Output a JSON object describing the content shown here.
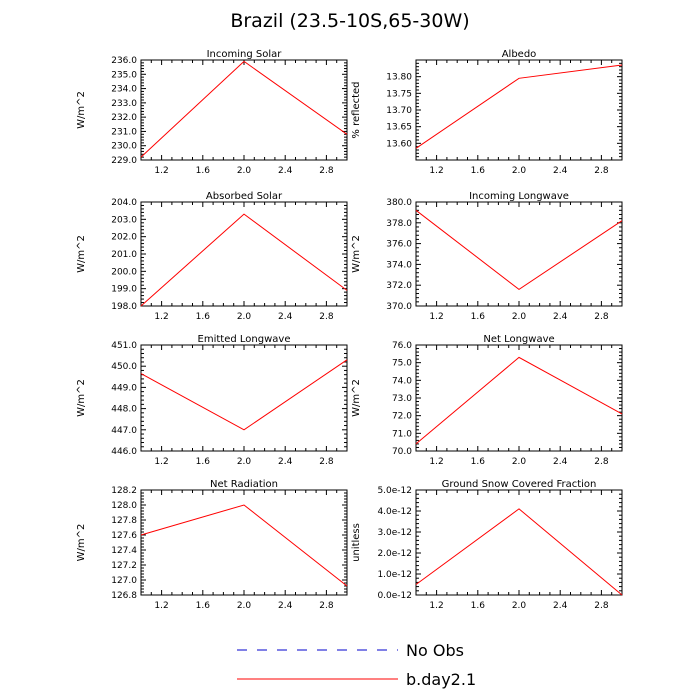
{
  "page_title": "Brazil (23.5-10S,65-30W)",
  "colors": {
    "series": "#ff0000",
    "no_obs": "#0000cc",
    "axis": "#000000",
    "background": "#ffffff"
  },
  "legend": {
    "placement": "bottom-center",
    "entries": [
      {
        "label": "No Obs",
        "color": "#0000cc",
        "style": "dashed"
      },
      {
        "label": "b.day2.1",
        "color": "#ff0000",
        "style": "solid"
      }
    ]
  },
  "chart_data": [
    {
      "type": "line",
      "title": "Incoming Solar",
      "ylabel": "W/m^2",
      "xlim": [
        1,
        3
      ],
      "ylim": [
        229,
        236
      ],
      "xticks": [
        "1.2",
        "1.6",
        "2.0",
        "2.4",
        "2.8"
      ],
      "yticks": [
        "229.0",
        "230.0",
        "231.0",
        "232.0",
        "233.0",
        "234.0",
        "235.0",
        "236.0"
      ],
      "series": [
        {
          "x": [
            1,
            2,
            3
          ],
          "y": [
            229.2,
            235.9,
            230.8
          ]
        }
      ]
    },
    {
      "type": "line",
      "title": "Albedo",
      "ylabel": "% reflected",
      "xlim": [
        1,
        3
      ],
      "ylim": [
        13.55,
        13.85
      ],
      "xticks": [
        "1.2",
        "1.6",
        "2.0",
        "2.4",
        "2.8"
      ],
      "yticks": [
        "13.60",
        "13.65",
        "13.70",
        "13.75",
        "13.80"
      ],
      "series": [
        {
          "x": [
            1,
            2,
            3
          ],
          "y": [
            13.585,
            13.795,
            13.835
          ]
        }
      ]
    },
    {
      "type": "line",
      "title": "Absorbed Solar",
      "ylabel": "W/m^2",
      "xlim": [
        1,
        3
      ],
      "ylim": [
        198,
        204
      ],
      "xticks": [
        "1.2",
        "1.6",
        "2.0",
        "2.4",
        "2.8"
      ],
      "yticks": [
        "198.0",
        "199.0",
        "200.0",
        "201.0",
        "202.0",
        "203.0",
        "204.0"
      ],
      "series": [
        {
          "x": [
            1,
            2,
            3
          ],
          "y": [
            198.0,
            203.3,
            198.9
          ]
        }
      ]
    },
    {
      "type": "line",
      "title": "Incoming Longwave",
      "ylabel": "W/m^2",
      "xlim": [
        1,
        3
      ],
      "ylim": [
        370,
        380
      ],
      "xticks": [
        "1.2",
        "1.6",
        "2.0",
        "2.4",
        "2.8"
      ],
      "yticks": [
        "370.0",
        "372.0",
        "374.0",
        "376.0",
        "378.0",
        "380.0"
      ],
      "series": [
        {
          "x": [
            1,
            2,
            3
          ],
          "y": [
            379.2,
            371.6,
            378.2
          ]
        }
      ]
    },
    {
      "type": "line",
      "title": "Emitted Longwave",
      "ylabel": "W/m^2",
      "xlim": [
        1,
        3
      ],
      "ylim": [
        446,
        451
      ],
      "xticks": [
        "1.2",
        "1.6",
        "2.0",
        "2.4",
        "2.8"
      ],
      "yticks": [
        "446.0",
        "447.0",
        "448.0",
        "449.0",
        "450.0",
        "451.0"
      ],
      "series": [
        {
          "x": [
            1,
            2,
            3
          ],
          "y": [
            449.65,
            447.0,
            450.3
          ]
        }
      ]
    },
    {
      "type": "line",
      "title": "Net Longwave",
      "ylabel": "W/m^2",
      "xlim": [
        1,
        3
      ],
      "ylim": [
        70,
        76
      ],
      "xticks": [
        "1.2",
        "1.6",
        "2.0",
        "2.4",
        "2.8"
      ],
      "yticks": [
        "70.0",
        "71.0",
        "72.0",
        "73.0",
        "74.0",
        "75.0",
        "76.0"
      ],
      "series": [
        {
          "x": [
            1,
            2,
            3
          ],
          "y": [
            70.4,
            75.3,
            72.1
          ]
        }
      ]
    },
    {
      "type": "line",
      "title": "Net Radiation",
      "ylabel": "W/m^2",
      "xlim": [
        1,
        3
      ],
      "ylim": [
        126.8,
        128.2
      ],
      "xticks": [
        "1.2",
        "1.6",
        "2.0",
        "2.4",
        "2.8"
      ],
      "yticks": [
        "126.8",
        "127.0",
        "127.2",
        "127.4",
        "127.6",
        "127.8",
        "128.0",
        "128.2"
      ],
      "series": [
        {
          "x": [
            1,
            2,
            3
          ],
          "y": [
            127.6,
            128.0,
            126.92
          ]
        }
      ]
    },
    {
      "type": "line",
      "title": "Ground Snow Covered Fraction",
      "ylabel": "unitless",
      "xlim": [
        1,
        3
      ],
      "ylim": [
        0,
        5e-12
      ],
      "xticks": [
        "1.2",
        "1.6",
        "2.0",
        "2.4",
        "2.8"
      ],
      "yticks": [
        "0.0e-12",
        "1.0e-12",
        "2.0e-12",
        "3.0e-12",
        "4.0e-12",
        "5.0e-12"
      ],
      "series": [
        {
          "x": [
            1,
            2,
            3
          ],
          "y": [
            5e-13,
            4.1e-12,
            0.0
          ]
        }
      ]
    }
  ]
}
